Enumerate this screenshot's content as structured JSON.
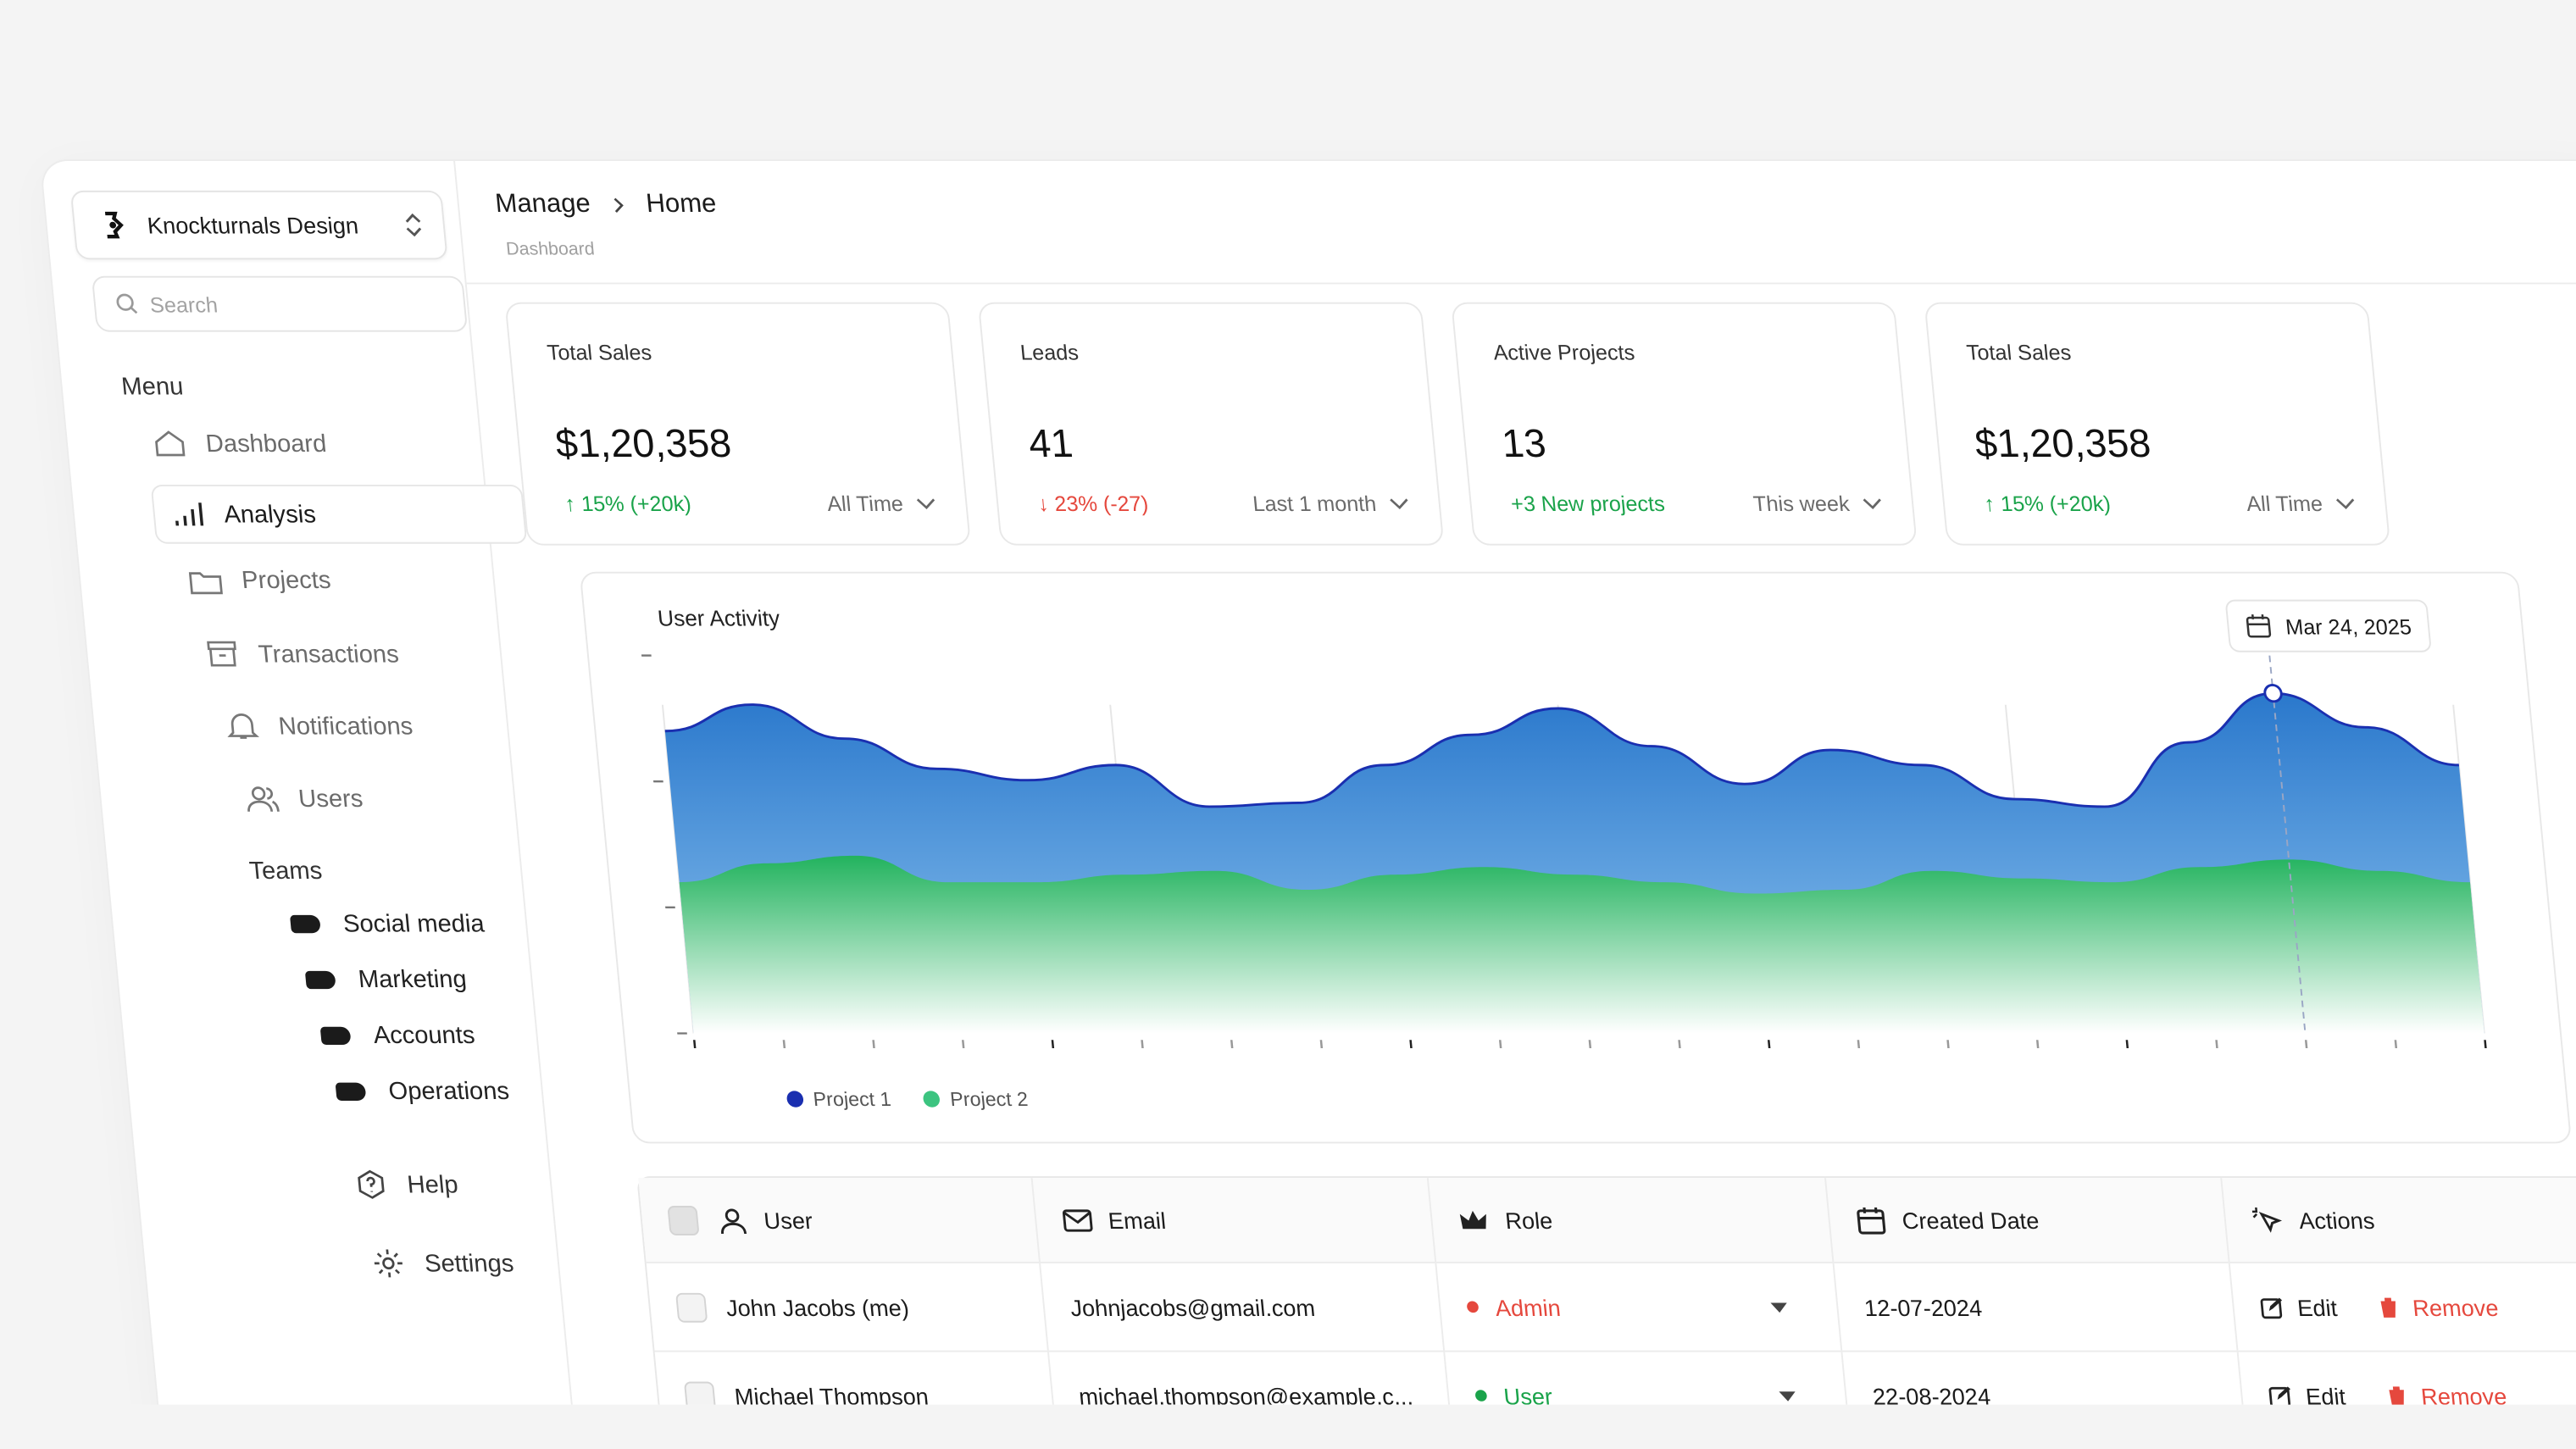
{
  "workspace": {
    "name": "Knockturnals Design"
  },
  "search": {
    "placeholder": "Search"
  },
  "sidebar": {
    "menu_heading": "Menu",
    "items": [
      {
        "label": "Dashboard",
        "icon": "home-icon"
      },
      {
        "label": "Analysis",
        "icon": "bar-chart-icon",
        "active": true
      },
      {
        "label": "Projects",
        "icon": "folder-icon"
      },
      {
        "label": "Transactions",
        "icon": "archive-icon"
      },
      {
        "label": "Notifications",
        "icon": "bell-icon"
      },
      {
        "label": "Users",
        "icon": "users-icon"
      }
    ],
    "teams_heading": "Teams",
    "teams": [
      "Social media",
      "Marketing",
      "Accounts",
      "Operations"
    ],
    "footer": [
      {
        "label": "Help",
        "icon": "help-icon"
      },
      {
        "label": "Settings",
        "icon": "gear-icon"
      }
    ]
  },
  "header": {
    "breadcrumb": [
      "Manage",
      "Home"
    ],
    "subtitle": "Dashboard"
  },
  "cards": [
    {
      "title": "Total Sales",
      "value": "$1,20,358",
      "delta": "15% (+20k)",
      "trend": "up",
      "period": "All Time"
    },
    {
      "title": "Leads",
      "value": "41",
      "delta": "23% (-27)",
      "trend": "down",
      "period": "Last 1 month"
    },
    {
      "title": "Active Projects",
      "value": "13",
      "delta": "+3 New projects",
      "trend": "flat-up",
      "period": "This week"
    },
    {
      "title": "Total Sales",
      "value": "$1,20,358",
      "delta": "15% (+20k)",
      "trend": "up",
      "period": "All Time"
    }
  ],
  "chart_title": "User Activity",
  "chart_date": "Mar 24, 2025",
  "chart_data": {
    "type": "area",
    "title": "User Activity",
    "x": [
      0,
      1,
      2,
      3,
      4,
      5,
      6,
      7,
      8,
      9,
      10,
      11,
      12,
      13,
      14,
      15,
      16,
      17,
      18,
      19,
      20
    ],
    "series": [
      {
        "name": "Project 1",
        "color": "#2a6fd0",
        "values": [
          0.8,
          0.87,
          0.78,
          0.7,
          0.67,
          0.71,
          0.6,
          0.61,
          0.71,
          0.79,
          0.86,
          0.76,
          0.66,
          0.75,
          0.71,
          0.62,
          0.6,
          0.77,
          0.9,
          0.81,
          0.71
        ]
      },
      {
        "name": "Project 2",
        "color": "#2fbf6b",
        "values": [
          0.4,
          0.45,
          0.47,
          0.4,
          0.4,
          0.42,
          0.43,
          0.38,
          0.42,
          0.44,
          0.42,
          0.4,
          0.37,
          0.38,
          0.43,
          0.41,
          0.4,
          0.44,
          0.46,
          0.43,
          0.4
        ]
      }
    ],
    "legend": "bottom-left",
    "highlight_index": 18
  },
  "table": {
    "headers": [
      "User",
      "Email",
      "Role",
      "Created Date",
      "Actions"
    ],
    "header_icons": [
      "user-icon",
      "mail-icon",
      "crown-icon",
      "calendar-icon",
      "pointer-icon"
    ],
    "rows": [
      {
        "user": "John Jacobs (me)",
        "email": "Johnjacobs@gmail.com",
        "role": "Admin",
        "role_color": "#e5483d",
        "date": "12-07-2024"
      },
      {
        "user": "Michael Thompson",
        "email": "michael.thompson@example.c...",
        "role": "User",
        "role_color": "#1aa34a",
        "date": "22-08-2024"
      }
    ],
    "edit_label": "Edit",
    "remove_label": "Remove"
  }
}
